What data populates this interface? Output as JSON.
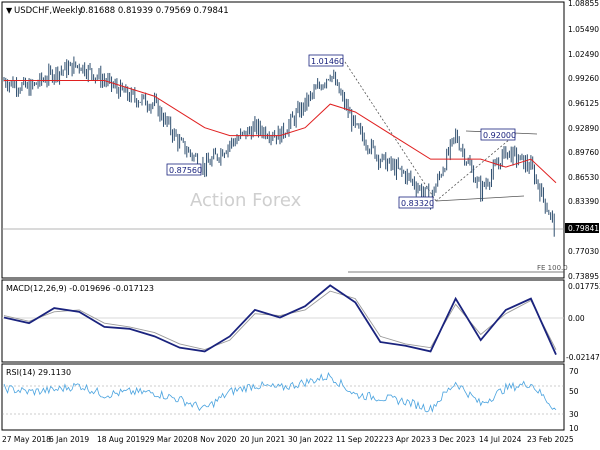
{
  "header": {
    "title": "USDCHF,Weekly",
    "ohlc": "0.81688 0.81939 0.79569 0.79841"
  },
  "watermark": "Action Forex",
  "colors": {
    "price": "#2f4f6f",
    "ma": "#e02020",
    "macd": "#1a237e",
    "signal": "#9a9a9a",
    "rsi": "#4aa3df",
    "label_border": "#1a237e",
    "label_text": "#1a237e",
    "triangle": "#555555",
    "watermark": "#cfcfcf",
    "current_bg": "#000000",
    "current_text": "#ffffff"
  },
  "price_panel": {
    "y_ticks": [
      "1.08855",
      "1.05490",
      "1.02490",
      "0.99260",
      "0.96125",
      "0.92890",
      "0.89760",
      "0.86530",
      "0.83390",
      "0.77030",
      "0.73895"
    ],
    "current_price": "0.79841",
    "fe_label": "FE 100.0",
    "annotations": [
      {
        "text": "1.01460",
        "value": 1.0146,
        "date": "2022-10"
      },
      {
        "text": "0.87560",
        "value": 0.8756,
        "date": "2021-01"
      },
      {
        "text": "0.92000",
        "value": 0.92,
        "date": "2024-05"
      },
      {
        "text": "0.83320",
        "value": 0.8332,
        "date": "2023-12"
      }
    ]
  },
  "macd_panel": {
    "title": "MACD(12,26,9) -0.019696 -0.017123",
    "y_ticks": [
      "0.017753",
      "0.00",
      "-0.021479"
    ]
  },
  "rsi_panel": {
    "title": "RSI(14) 29.1130",
    "y_ticks": [
      "70",
      "50",
      "30",
      "10"
    ],
    "levels": [
      70,
      30
    ]
  },
  "x_axis": {
    "labels": [
      "27 May 2018",
      "6 Jan 2019",
      "18 Aug 2019",
      "29 Mar 2020",
      "8 Nov 2020",
      "20 Jun 2021",
      "30 Jan 2022",
      "11 Sep 2022",
      "23 Apr 2023",
      "3 Dec 2023",
      "14 Jul 2024",
      "23 Feb 2025"
    ]
  },
  "chart_data": {
    "type": "line",
    "title": "USDCHF,Weekly",
    "x": [
      "2018-05",
      "2018-09",
      "2019-01",
      "2019-05",
      "2019-09",
      "2020-01",
      "2020-05",
      "2020-09",
      "2021-01",
      "2021-05",
      "2021-09",
      "2022-01",
      "2022-05",
      "2022-10",
      "2023-01",
      "2023-05",
      "2023-08",
      "2023-12",
      "2024-05",
      "2024-08",
      "2024-12",
      "2025-02",
      "2025-04"
    ],
    "ylim": [
      0.73895,
      1.08855
    ],
    "series": [
      {
        "name": "USDCHF close",
        "values": [
          0.99,
          0.98,
          1.0,
          1.01,
          0.99,
          0.97,
          0.96,
          0.91,
          0.88,
          0.91,
          0.93,
          0.92,
          0.96,
          1.0,
          0.93,
          0.89,
          0.87,
          0.84,
          0.92,
          0.85,
          0.9,
          0.88,
          0.8
        ]
      },
      {
        "name": "MA",
        "values": [
          0.99,
          0.99,
          0.99,
          0.99,
          0.99,
          0.98,
          0.97,
          0.95,
          0.93,
          0.92,
          0.92,
          0.92,
          0.93,
          0.96,
          0.95,
          0.93,
          0.91,
          0.89,
          0.89,
          0.89,
          0.88,
          0.89,
          0.86
        ]
      }
    ],
    "macd": {
      "name": "MACD(12,26,9)",
      "ylim": [
        -0.021479,
        0.017753
      ],
      "series": [
        {
          "name": "MACD",
          "values": [
            0.0,
            -0.003,
            0.005,
            0.003,
            -0.005,
            -0.006,
            -0.01,
            -0.016,
            -0.018,
            -0.01,
            0.004,
            0.0,
            0.006,
            0.017,
            0.008,
            -0.013,
            -0.015,
            -0.018,
            0.01,
            -0.012,
            0.004,
            0.01,
            -0.0197
          ]
        },
        {
          "name": "Signal",
          "values": [
            0.001,
            -0.002,
            0.003,
            0.004,
            -0.003,
            -0.005,
            -0.008,
            -0.014,
            -0.017,
            -0.012,
            0.002,
            0.001,
            0.004,
            0.014,
            0.01,
            -0.01,
            -0.014,
            -0.016,
            0.007,
            -0.009,
            0.002,
            0.009,
            -0.0171
          ]
        }
      ]
    },
    "rsi": {
      "name": "RSI(14)",
      "ylim": [
        10,
        70
      ],
      "values": [
        52,
        48,
        50,
        55,
        45,
        48,
        47,
        40,
        30,
        48,
        55,
        52,
        58,
        65,
        45,
        42,
        38,
        30,
        58,
        35,
        52,
        57,
        29.1
      ]
    }
  }
}
